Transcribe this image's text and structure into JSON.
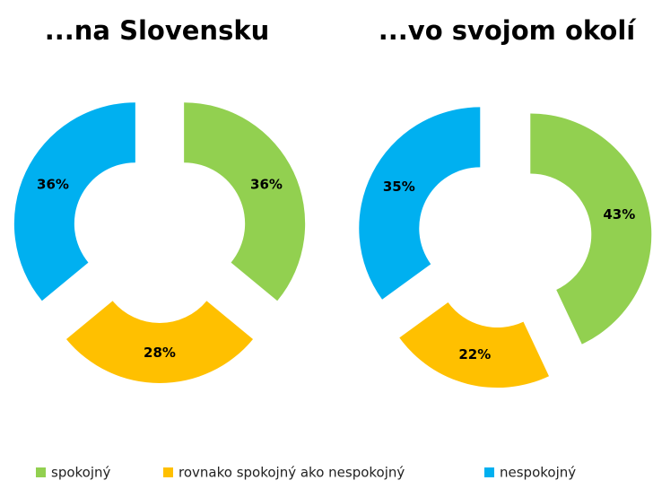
{
  "chart_data": [
    {
      "type": "pie",
      "title": "...na Slovensku",
      "categories": [
        "spokojný",
        "rovnako spokojný ako nespokojný",
        "nespokojný"
      ],
      "values": [
        36,
        28,
        36
      ],
      "value_labels": [
        "36%",
        "28%",
        "36%"
      ],
      "colors": [
        "#92d050",
        "#ffc000",
        "#00b0f0"
      ]
    },
    {
      "type": "pie",
      "title": "...vo svojom okolí",
      "categories": [
        "spokojný",
        "rovnako spokojný ako nespokojný",
        "nespokojný"
      ],
      "values": [
        43,
        22,
        35
      ],
      "value_labels": [
        "43%",
        "22%",
        "35%"
      ],
      "colors": [
        "#92d050",
        "#ffc000",
        "#00b0f0"
      ]
    }
  ]
}
